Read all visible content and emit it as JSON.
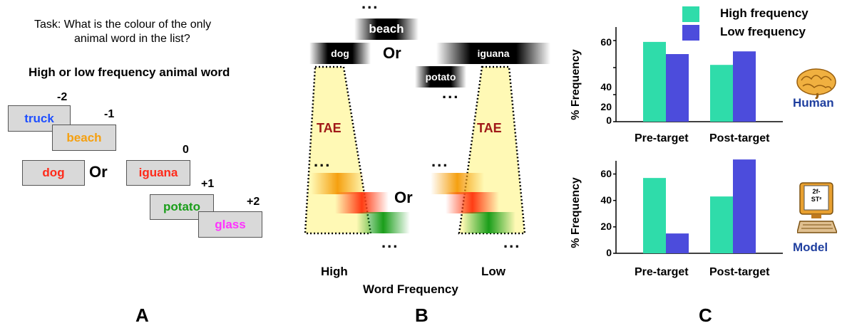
{
  "panel_a": {
    "task_line1": "Task: What is the colour of the only",
    "task_line2": "animal word in the list?",
    "subtitle": "High or low frequency animal word",
    "words": {
      "truck": "truck",
      "beach": "beach",
      "dog": "dog",
      "iguana": "iguana",
      "potato": "potato",
      "glass": "glass"
    },
    "positions": {
      "m2": "-2",
      "m1": "-1",
      "zero": "0",
      "p1": "+1",
      "p2": "+2"
    },
    "or_label": "Or",
    "letter": "A",
    "colors": {
      "truck": "#1f4fff",
      "beach": "#f5a010",
      "dog": "#ff2a1a",
      "iguana": "#ff2a1a",
      "potato": "#1a9e1a",
      "glass": "#ff33ff"
    }
  },
  "panel_b": {
    "dots": "...",
    "beach": "beach",
    "dog": "dog",
    "iguana": "iguana",
    "potato": "potato",
    "or_label": "Or",
    "tae_label": "TAE",
    "high_label": "High",
    "low_label": "Low",
    "axis_title": "Word Frequency",
    "letter": "B"
  },
  "panel_c": {
    "legend": {
      "high": "High frequency",
      "low": "Low frequency"
    },
    "ylabel": "% Frequency",
    "human_label": "Human",
    "model_label": "Model",
    "computer_screen_text": "2f-\nST²",
    "letter": "C",
    "colors": {
      "high": "#2fdcaa",
      "low": "#4c4cdc",
      "side_label": "#1f3f9f"
    }
  },
  "chart_data": [
    {
      "type": "bar",
      "categories": [
        "Pre-target",
        "Post-target"
      ],
      "series": [
        {
          "name": "High frequency",
          "values": [
            59,
            42
          ]
        },
        {
          "name": "Low frequency",
          "values": [
            50,
            52
          ]
        }
      ],
      "ylabel": "% Frequency",
      "ylim": [
        0,
        70
      ],
      "yticks": [
        0,
        20,
        40,
        60
      ]
    },
    {
      "type": "bar",
      "categories": [
        "Pre-target",
        "Post-target"
      ],
      "series": [
        {
          "name": "High frequency",
          "values": [
            57,
            43
          ]
        },
        {
          "name": "Low frequency",
          "values": [
            15,
            71
          ]
        }
      ],
      "ylabel": "% Frequency",
      "ylim": [
        0,
        70
      ],
      "yticks": [
        0,
        20,
        40,
        60
      ]
    }
  ]
}
